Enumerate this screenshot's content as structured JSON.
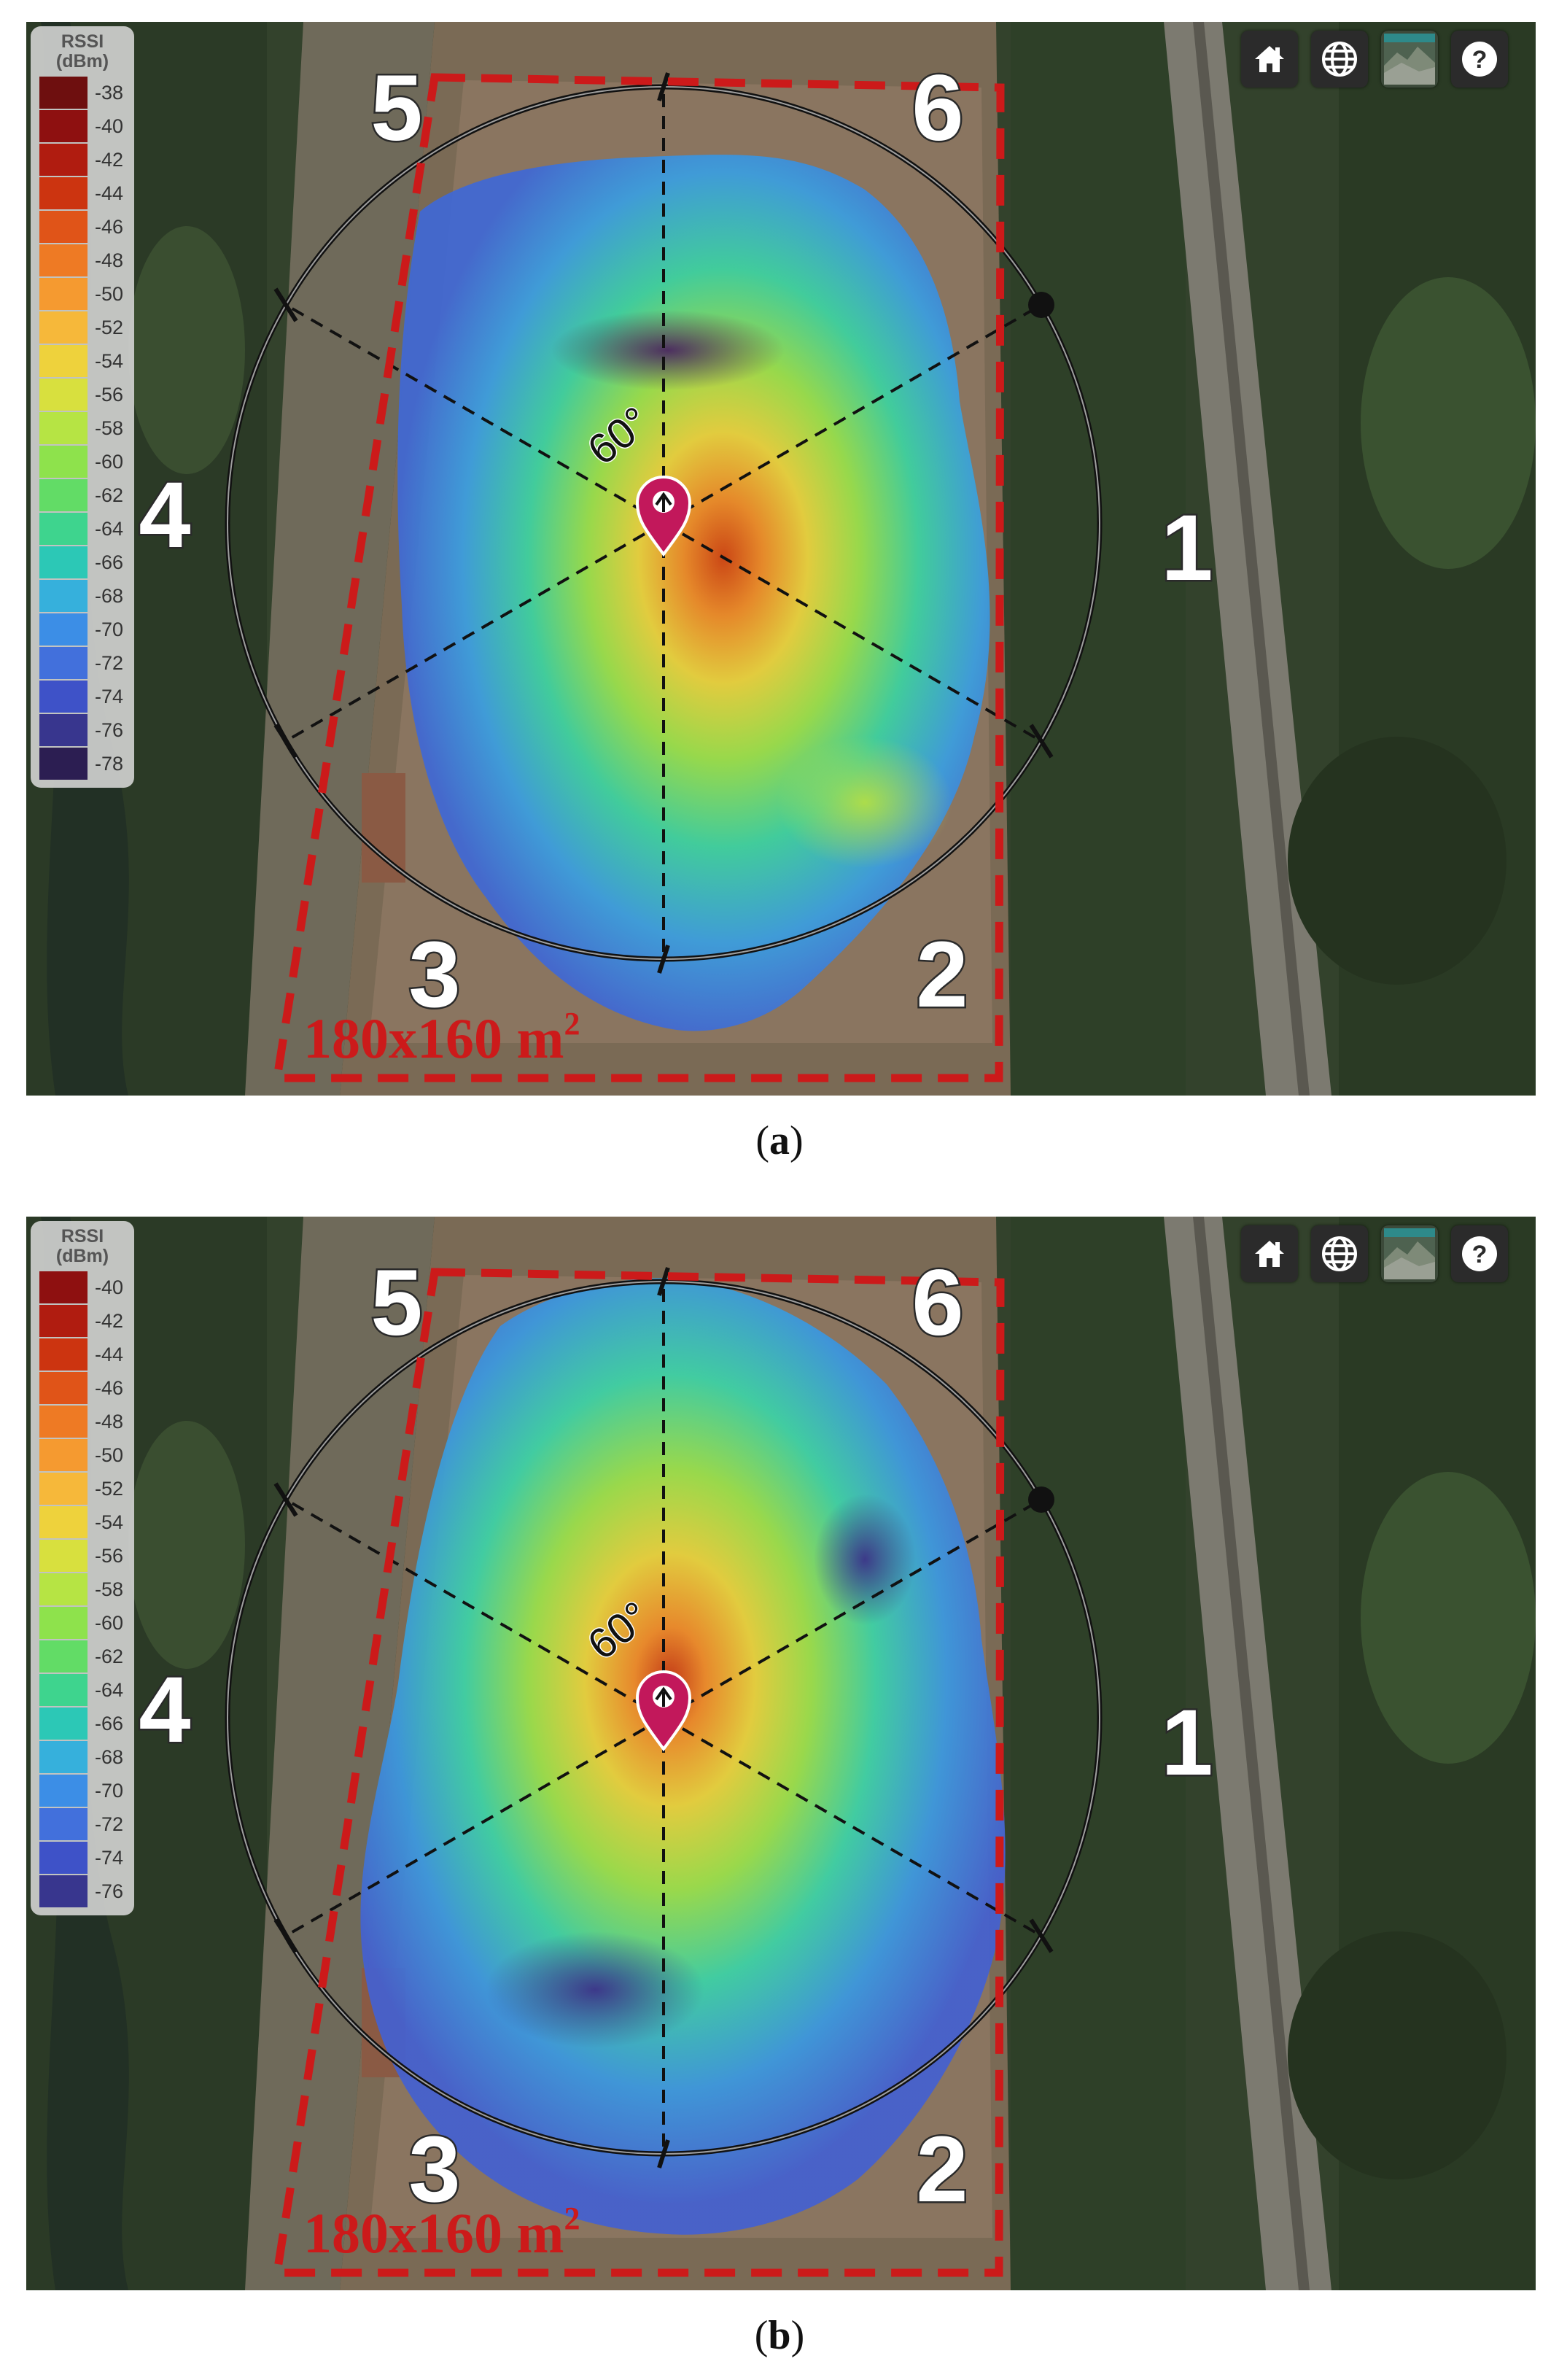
{
  "panels": [
    {
      "id": "a",
      "caption_letter": "a",
      "legend": {
        "title": "RSSI",
        "units": "(dBm)",
        "labels": [
          "-38",
          "-40",
          "-42",
          "-44",
          "-46",
          "-48",
          "-50",
          "-52",
          "-54",
          "-56",
          "-58",
          "-60",
          "-62",
          "-64",
          "-66",
          "-68",
          "-70",
          "-72",
          "-74",
          "-76",
          "-78"
        ],
        "colors": [
          "#6e0f0f",
          "#8e1010",
          "#b01c10",
          "#cc3410",
          "#e05418",
          "#ee7a24",
          "#f59a30",
          "#f6b83a",
          "#eed23c",
          "#d8e03e",
          "#b6e444",
          "#8ee24c",
          "#62dc66",
          "#3ed48e",
          "#2cc8b6",
          "#36b0dc",
          "#3c8ee6",
          "#4270dc",
          "#3e52c8",
          "#38368e",
          "#2c1e52"
        ]
      },
      "sectors": [
        "1",
        "2",
        "3",
        "4",
        "5",
        "6"
      ],
      "angle_label": "60°",
      "area_label": "180x160 m",
      "area_exponent": "2"
    },
    {
      "id": "b",
      "caption_letter": "b",
      "legend": {
        "title": "RSSI",
        "units": "(dBm)",
        "labels": [
          "-40",
          "-42",
          "-44",
          "-46",
          "-48",
          "-50",
          "-52",
          "-54",
          "-56",
          "-58",
          "-60",
          "-62",
          "-64",
          "-66",
          "-68",
          "-70",
          "-72",
          "-74",
          "-76"
        ],
        "colors": [
          "#8e1010",
          "#b01c10",
          "#cc3410",
          "#e05418",
          "#ee7a24",
          "#f59a30",
          "#f6b83a",
          "#eed23c",
          "#d8e03e",
          "#b6e444",
          "#8ee24c",
          "#62dc66",
          "#3ed48e",
          "#2cc8b6",
          "#36b0dc",
          "#3c8ee6",
          "#4270dc",
          "#3e52c8",
          "#38368e"
        ]
      },
      "sectors": [
        "1",
        "2",
        "3",
        "4",
        "5",
        "6"
      ],
      "angle_label": "60°",
      "area_label": "180x160 m",
      "area_exponent": "2"
    }
  ],
  "toolbar": {
    "icons": [
      "home-icon",
      "globe-icon",
      "satellite-layer-icon",
      "help-icon"
    ],
    "help_glyph": "?"
  },
  "colors": {
    "boundary": "#cc1a1a",
    "circle": "#111111",
    "marker": "#c2185b"
  }
}
